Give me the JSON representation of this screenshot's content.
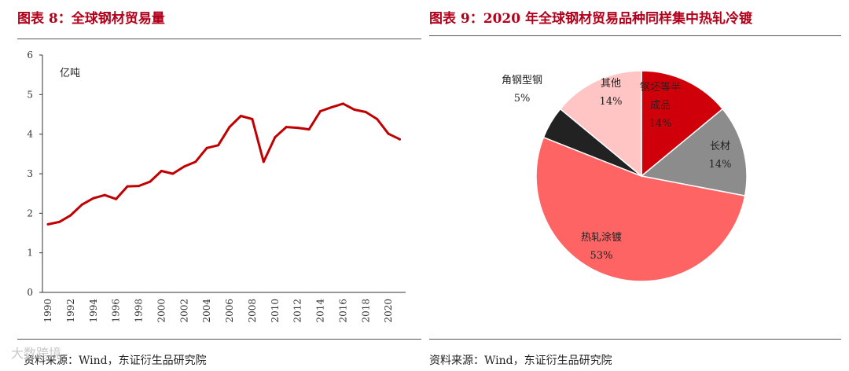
{
  "left": {
    "title": "图表 8：全球钢材贸易量",
    "source": "资料来源：Wind，东证衍生品研究院"
  },
  "right": {
    "title": "图表 9：2020 年全球钢材贸易品种同样集中热轧冷镀",
    "source": "资料来源：Wind，东证衍生品研究院"
  },
  "watermark": "大数跨境",
  "colors": {
    "brand": "#b3001b",
    "line": "#c00000"
  },
  "chart_data": [
    {
      "type": "line",
      "title": "全球钢材贸易量",
      "ylabel": "亿吨",
      "xlabel": "",
      "ylim": [
        0,
        6
      ],
      "yticks": [
        0,
        1,
        2,
        3,
        4,
        5,
        6
      ],
      "xticks": [
        1990,
        1992,
        1994,
        1996,
        1998,
        2000,
        2002,
        2004,
        2006,
        2008,
        2010,
        2012,
        2014,
        2016,
        2018,
        2020
      ],
      "x": [
        1990,
        1991,
        1992,
        1993,
        1994,
        1995,
        1996,
        1997,
        1998,
        1999,
        2000,
        2001,
        2002,
        2003,
        2004,
        2005,
        2006,
        2007,
        2008,
        2009,
        2010,
        2011,
        2012,
        2013,
        2014,
        2015,
        2016,
        2017,
        2018,
        2019,
        2020,
        2021
      ],
      "series": [
        {
          "name": "全球钢材贸易量",
          "color": "#c00000",
          "values": [
            1.72,
            1.78,
            1.95,
            2.22,
            2.38,
            2.46,
            2.36,
            2.68,
            2.69,
            2.8,
            3.07,
            3.0,
            3.18,
            3.3,
            3.65,
            3.72,
            4.18,
            4.46,
            4.38,
            3.3,
            3.92,
            4.18,
            4.16,
            4.12,
            4.58,
            4.68,
            4.77,
            4.62,
            4.56,
            4.38,
            4.01,
            3.87
          ]
        }
      ],
      "grid": false
    },
    {
      "type": "pie",
      "title": "2020 年全球钢材贸易品种同样集中热轧冷镀",
      "slices": [
        {
          "label": "钢坯等半成品",
          "label_lines": [
            "钢坯等半",
            "成品"
          ],
          "value": 14,
          "pct_text": "14%",
          "color": "#d0000a"
        },
        {
          "label": "长材",
          "label_lines": [
            "长材"
          ],
          "value": 14,
          "pct_text": "14%",
          "color": "#8c8c8c"
        },
        {
          "label": "热轧涂镀",
          "label_lines": [
            "热轧涂镀"
          ],
          "value": 53,
          "pct_text": "53%",
          "color": "#ff6464"
        },
        {
          "label": "角钢型钢",
          "label_lines": [
            "角钢型钢"
          ],
          "value": 5,
          "pct_text": "5%",
          "color": "#222222"
        },
        {
          "label": "其他",
          "label_lines": [
            "其他"
          ],
          "value": 14,
          "pct_text": "14%",
          "color": "#ffc4c4"
        }
      ]
    }
  ]
}
